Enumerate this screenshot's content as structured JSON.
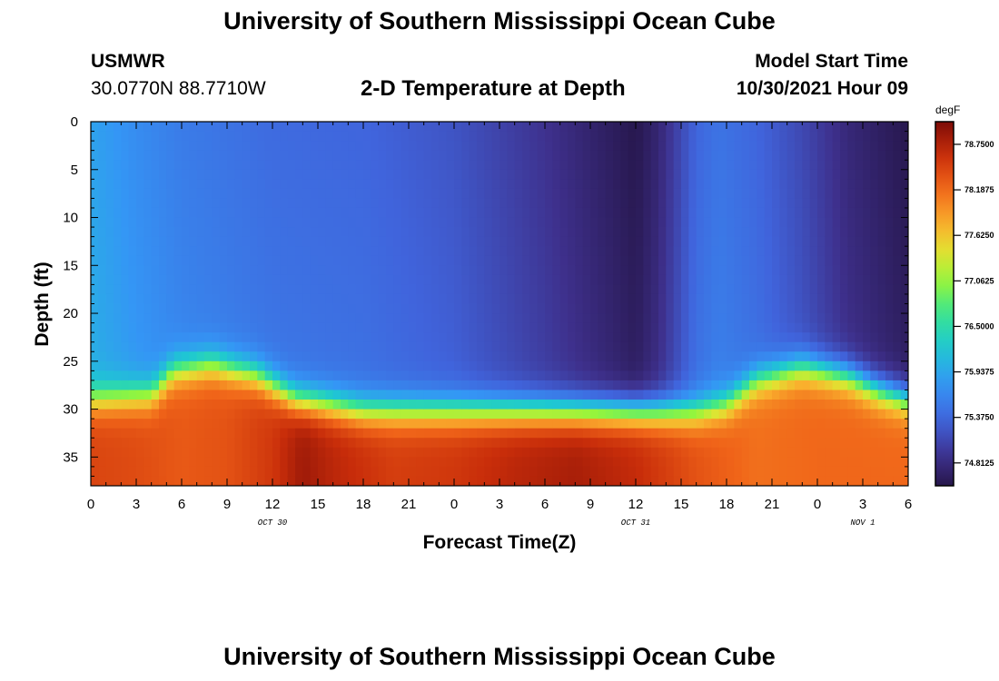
{
  "header": {
    "title": "University of Southern Mississippi Ocean Cube",
    "station": "USMWR",
    "coordinates": "30.0770N  88.7710W",
    "subtitle": "2-D Temperature at Depth",
    "model_start_label": "Model Start Time",
    "model_start_value": "10/30/2021 Hour 09"
  },
  "footer": {
    "title": "University of Southern Mississippi Ocean Cube"
  },
  "chart_data": {
    "type": "heatmap",
    "title": "2-D Temperature at Depth",
    "xlabel": "Forecast Time(Z)",
    "ylabel": "Depth (ft)",
    "x_range_hours": [
      0,
      54
    ],
    "x_tick_labels": [
      "0",
      "3",
      "6",
      "9",
      "12",
      "15",
      "18",
      "21",
      "0",
      "3",
      "6",
      "9",
      "12",
      "15",
      "18",
      "21",
      "0",
      "3",
      "6"
    ],
    "date_labels": [
      {
        "label": "OCT 30",
        "hour": 12
      },
      {
        "label": "OCT 31",
        "hour": 36
      },
      {
        "label": "NOV 1",
        "hour": 51
      }
    ],
    "y_range_ft": [
      0,
      38
    ],
    "y_ticks": [
      0,
      5,
      10,
      15,
      20,
      25,
      30,
      35
    ],
    "colorbar": {
      "unit": "degF",
      "labels": [
        "78.7500",
        "78.1875",
        "77.6250",
        "77.0625",
        "76.5000",
        "75.9375",
        "75.3750",
        "74.8125"
      ],
      "min": 74.53,
      "max": 79.03
    },
    "thermocline_depth_ft": [
      {
        "hour": 0,
        "depth": 29.0
      },
      {
        "hour": 4,
        "depth": 28.5
      },
      {
        "hour": 5.5,
        "depth": 26.0
      },
      {
        "hour": 8,
        "depth": 25.3
      },
      {
        "hour": 11,
        "depth": 26.5
      },
      {
        "hour": 13.5,
        "depth": 29.0
      },
      {
        "hour": 18,
        "depth": 30.2
      },
      {
        "hour": 30,
        "depth": 30.2
      },
      {
        "hour": 40,
        "depth": 30.3
      },
      {
        "hour": 42,
        "depth": 29.5
      },
      {
        "hour": 44,
        "depth": 27.0
      },
      {
        "hour": 47,
        "depth": 25.6
      },
      {
        "hour": 50,
        "depth": 26.5
      },
      {
        "hour": 52,
        "depth": 28.0
      },
      {
        "hour": 54,
        "depth": 29.0
      }
    ],
    "upper_layer_temp_degF": [
      {
        "hour": 0,
        "temp": 75.9
      },
      {
        "hour": 3,
        "temp": 75.7
      },
      {
        "hour": 6,
        "temp": 75.55
      },
      {
        "hour": 12,
        "temp": 75.4
      },
      {
        "hour": 18,
        "temp": 75.35
      },
      {
        "hour": 24,
        "temp": 75.2
      },
      {
        "hour": 27,
        "temp": 75.05
      },
      {
        "hour": 30,
        "temp": 74.9
      },
      {
        "hour": 33,
        "temp": 74.72
      },
      {
        "hour": 36,
        "temp": 74.55
      },
      {
        "hour": 37.5,
        "temp": 74.75
      },
      {
        "hour": 40,
        "temp": 75.35
      },
      {
        "hour": 41.5,
        "temp": 75.48
      },
      {
        "hour": 44,
        "temp": 75.35
      },
      {
        "hour": 47,
        "temp": 75.1
      },
      {
        "hour": 50,
        "temp": 74.78
      },
      {
        "hour": 54,
        "temp": 74.55
      }
    ],
    "deep_temp_degF": [
      {
        "hour": 0,
        "temp": 78.45
      },
      {
        "hour": 3,
        "temp": 78.4
      },
      {
        "hour": 6,
        "temp": 78.3
      },
      {
        "hour": 9,
        "temp": 78.35
      },
      {
        "hour": 12,
        "temp": 78.55
      },
      {
        "hour": 14,
        "temp": 78.85
      },
      {
        "hour": 16,
        "temp": 78.7
      },
      {
        "hour": 20,
        "temp": 78.5
      },
      {
        "hour": 24,
        "temp": 78.55
      },
      {
        "hour": 28,
        "temp": 78.7
      },
      {
        "hour": 32,
        "temp": 78.8
      },
      {
        "hour": 36,
        "temp": 78.65
      },
      {
        "hour": 40,
        "temp": 78.35
      },
      {
        "hour": 44,
        "temp": 78.15
      },
      {
        "hour": 48,
        "temp": 78.2
      },
      {
        "hour": 54,
        "temp": 78.2
      }
    ]
  }
}
